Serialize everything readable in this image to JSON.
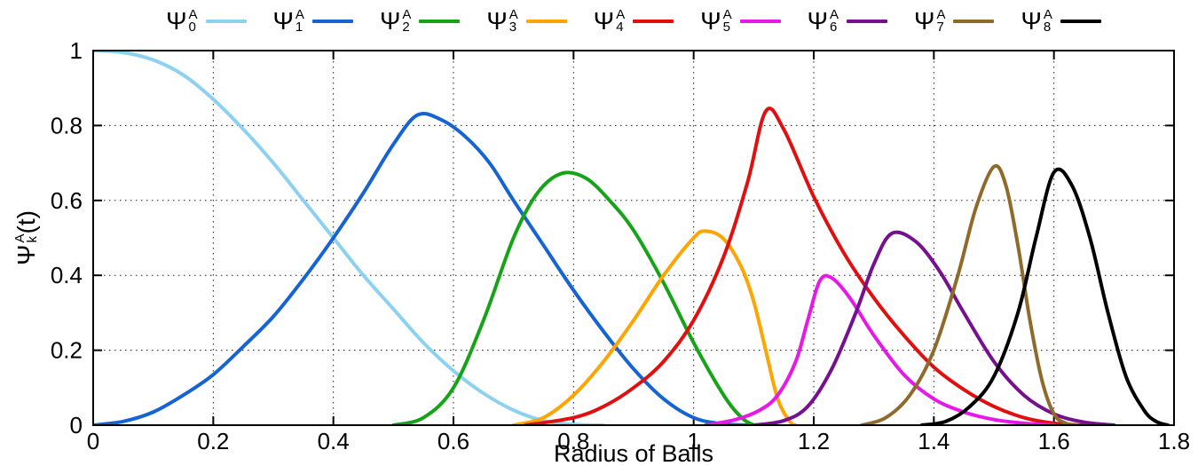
{
  "chart_data": {
    "type": "line",
    "title": "",
    "xlabel": "Radius of Balls",
    "ylabel": "Psi_k^A(t)",
    "ylabel_parts": {
      "symbol": "Ψ",
      "sup": "A",
      "sub": "k",
      "suffix": "(t)"
    },
    "xlim": [
      0,
      1.8
    ],
    "ylim": [
      0,
      1
    ],
    "xticks": [
      0,
      0.2,
      0.4,
      0.6,
      0.8,
      1,
      1.2,
      1.4,
      1.6,
      1.8
    ],
    "xtick_labels": [
      "0",
      "0.2",
      "0.4",
      "0.6",
      "0.8",
      "1",
      "1.2",
      "1.4",
      "1.6",
      "1.8"
    ],
    "yticks": [
      0,
      0.2,
      0.4,
      0.6,
      0.8,
      1
    ],
    "ytick_labels": [
      "0",
      "0.2",
      "0.4",
      "0.6",
      "0.8",
      "1"
    ],
    "grid": "dotted",
    "legend_position": "top",
    "axis_color": "#000000",
    "series": [
      {
        "id": "psi0",
        "symbol": "Ψ",
        "sup": "A",
        "sub": "0",
        "color": "#8CD2F0",
        "points": [
          [
            0,
            1
          ],
          [
            0.05,
            0.995
          ],
          [
            0.1,
            0.975
          ],
          [
            0.15,
            0.935
          ],
          [
            0.2,
            0.87
          ],
          [
            0.25,
            0.79
          ],
          [
            0.3,
            0.7
          ],
          [
            0.35,
            0.6
          ],
          [
            0.4,
            0.5
          ],
          [
            0.45,
            0.4
          ],
          [
            0.5,
            0.31
          ],
          [
            0.55,
            0.22
          ],
          [
            0.6,
            0.145
          ],
          [
            0.65,
            0.085
          ],
          [
            0.7,
            0.04
          ],
          [
            0.75,
            0.012
          ],
          [
            0.8,
            0.002
          ],
          [
            0.85,
            0
          ]
        ]
      },
      {
        "id": "psi1",
        "symbol": "Ψ",
        "sup": "A",
        "sub": "1",
        "color": "#1663D2",
        "points": [
          [
            0,
            0
          ],
          [
            0.05,
            0.01
          ],
          [
            0.1,
            0.035
          ],
          [
            0.15,
            0.08
          ],
          [
            0.2,
            0.135
          ],
          [
            0.25,
            0.21
          ],
          [
            0.3,
            0.29
          ],
          [
            0.35,
            0.39
          ],
          [
            0.4,
            0.5
          ],
          [
            0.45,
            0.62
          ],
          [
            0.5,
            0.75
          ],
          [
            0.54,
            0.828
          ],
          [
            0.58,
            0.815
          ],
          [
            0.62,
            0.77
          ],
          [
            0.66,
            0.7
          ],
          [
            0.7,
            0.6
          ],
          [
            0.75,
            0.48
          ],
          [
            0.8,
            0.36
          ],
          [
            0.85,
            0.25
          ],
          [
            0.9,
            0.15
          ],
          [
            0.95,
            0.07
          ],
          [
            1,
            0.02
          ],
          [
            1.05,
            0.003
          ],
          [
            1.1,
            0
          ]
        ]
      },
      {
        "id": "psi2",
        "symbol": "Ψ",
        "sup": "A",
        "sub": "2",
        "color": "#17A317",
        "points": [
          [
            0.5,
            0
          ],
          [
            0.55,
            0.02
          ],
          [
            0.6,
            0.1
          ],
          [
            0.65,
            0.28
          ],
          [
            0.7,
            0.5
          ],
          [
            0.74,
            0.62
          ],
          [
            0.78,
            0.672
          ],
          [
            0.82,
            0.66
          ],
          [
            0.86,
            0.6
          ],
          [
            0.9,
            0.52
          ],
          [
            0.95,
            0.38
          ],
          [
            1,
            0.22
          ],
          [
            1.05,
            0.08
          ],
          [
            1.08,
            0.02
          ],
          [
            1.1,
            0
          ]
        ]
      },
      {
        "id": "psi3",
        "symbol": "Ψ",
        "sup": "A",
        "sub": "3",
        "color": "#FFA400",
        "points": [
          [
            0.7,
            0
          ],
          [
            0.75,
            0.02
          ],
          [
            0.8,
            0.08
          ],
          [
            0.85,
            0.17
          ],
          [
            0.9,
            0.28
          ],
          [
            0.95,
            0.4
          ],
          [
            1,
            0.5
          ],
          [
            1.02,
            0.518
          ],
          [
            1.05,
            0.497
          ],
          [
            1.08,
            0.42
          ],
          [
            1.1,
            0.33
          ],
          [
            1.12,
            0.2
          ],
          [
            1.14,
            0.07
          ],
          [
            1.16,
            0.01
          ],
          [
            1.17,
            0
          ]
        ]
      },
      {
        "id": "psi4",
        "symbol": "Ψ",
        "sup": "A",
        "sub": "4",
        "color": "#E01010",
        "points": [
          [
            0.72,
            0
          ],
          [
            0.8,
            0.02
          ],
          [
            0.85,
            0.05
          ],
          [
            0.9,
            0.1
          ],
          [
            0.95,
            0.17
          ],
          [
            1,
            0.28
          ],
          [
            1.05,
            0.45
          ],
          [
            1.09,
            0.65
          ],
          [
            1.12,
            0.838
          ],
          [
            1.15,
            0.79
          ],
          [
            1.2,
            0.61
          ],
          [
            1.25,
            0.46
          ],
          [
            1.3,
            0.34
          ],
          [
            1.35,
            0.24
          ],
          [
            1.4,
            0.155
          ],
          [
            1.45,
            0.095
          ],
          [
            1.5,
            0.05
          ],
          [
            1.55,
            0.02
          ],
          [
            1.6,
            0.005
          ],
          [
            1.65,
            0
          ]
        ]
      },
      {
        "id": "psi5",
        "symbol": "Ψ",
        "sup": "A",
        "sub": "5",
        "color": "#E619E6",
        "points": [
          [
            1.02,
            0
          ],
          [
            1.07,
            0.015
          ],
          [
            1.11,
            0.04
          ],
          [
            1.14,
            0.08
          ],
          [
            1.17,
            0.17
          ],
          [
            1.19,
            0.28
          ],
          [
            1.21,
            0.385
          ],
          [
            1.23,
            0.393
          ],
          [
            1.26,
            0.34
          ],
          [
            1.3,
            0.24
          ],
          [
            1.35,
            0.135
          ],
          [
            1.4,
            0.07
          ],
          [
            1.45,
            0.035
          ],
          [
            1.5,
            0.015
          ],
          [
            1.55,
            0.005
          ],
          [
            1.6,
            0
          ]
        ]
      },
      {
        "id": "psi6",
        "symbol": "Ψ",
        "sup": "A",
        "sub": "6",
        "color": "#76108F",
        "points": [
          [
            1.1,
            0
          ],
          [
            1.15,
            0.012
          ],
          [
            1.19,
            0.05
          ],
          [
            1.23,
            0.15
          ],
          [
            1.27,
            0.3
          ],
          [
            1.3,
            0.43
          ],
          [
            1.33,
            0.512
          ],
          [
            1.37,
            0.49
          ],
          [
            1.41,
            0.41
          ],
          [
            1.45,
            0.3
          ],
          [
            1.5,
            0.17
          ],
          [
            1.55,
            0.08
          ],
          [
            1.6,
            0.03
          ],
          [
            1.65,
            0.008
          ],
          [
            1.7,
            0
          ]
        ]
      },
      {
        "id": "psi7",
        "symbol": "Ψ",
        "sup": "A",
        "sub": "7",
        "color": "#8F6A2A",
        "points": [
          [
            1.28,
            0
          ],
          [
            1.32,
            0.02
          ],
          [
            1.36,
            0.08
          ],
          [
            1.4,
            0.2
          ],
          [
            1.44,
            0.4
          ],
          [
            1.47,
            0.58
          ],
          [
            1.5,
            0.69
          ],
          [
            1.52,
            0.64
          ],
          [
            1.54,
            0.48
          ],
          [
            1.56,
            0.28
          ],
          [
            1.58,
            0.12
          ],
          [
            1.6,
            0.03
          ],
          [
            1.62,
            0.005
          ],
          [
            1.64,
            0
          ]
        ]
      },
      {
        "id": "psi8",
        "symbol": "Ψ",
        "sup": "A",
        "sub": "8",
        "color": "#000000",
        "points": [
          [
            1.38,
            0
          ],
          [
            1.42,
            0.01
          ],
          [
            1.46,
            0.05
          ],
          [
            1.5,
            0.13
          ],
          [
            1.54,
            0.3
          ],
          [
            1.57,
            0.5
          ],
          [
            1.6,
            0.675
          ],
          [
            1.63,
            0.64
          ],
          [
            1.66,
            0.5
          ],
          [
            1.69,
            0.3
          ],
          [
            1.72,
            0.13
          ],
          [
            1.75,
            0.04
          ],
          [
            1.77,
            0.01
          ],
          [
            1.79,
            0
          ]
        ]
      }
    ]
  }
}
